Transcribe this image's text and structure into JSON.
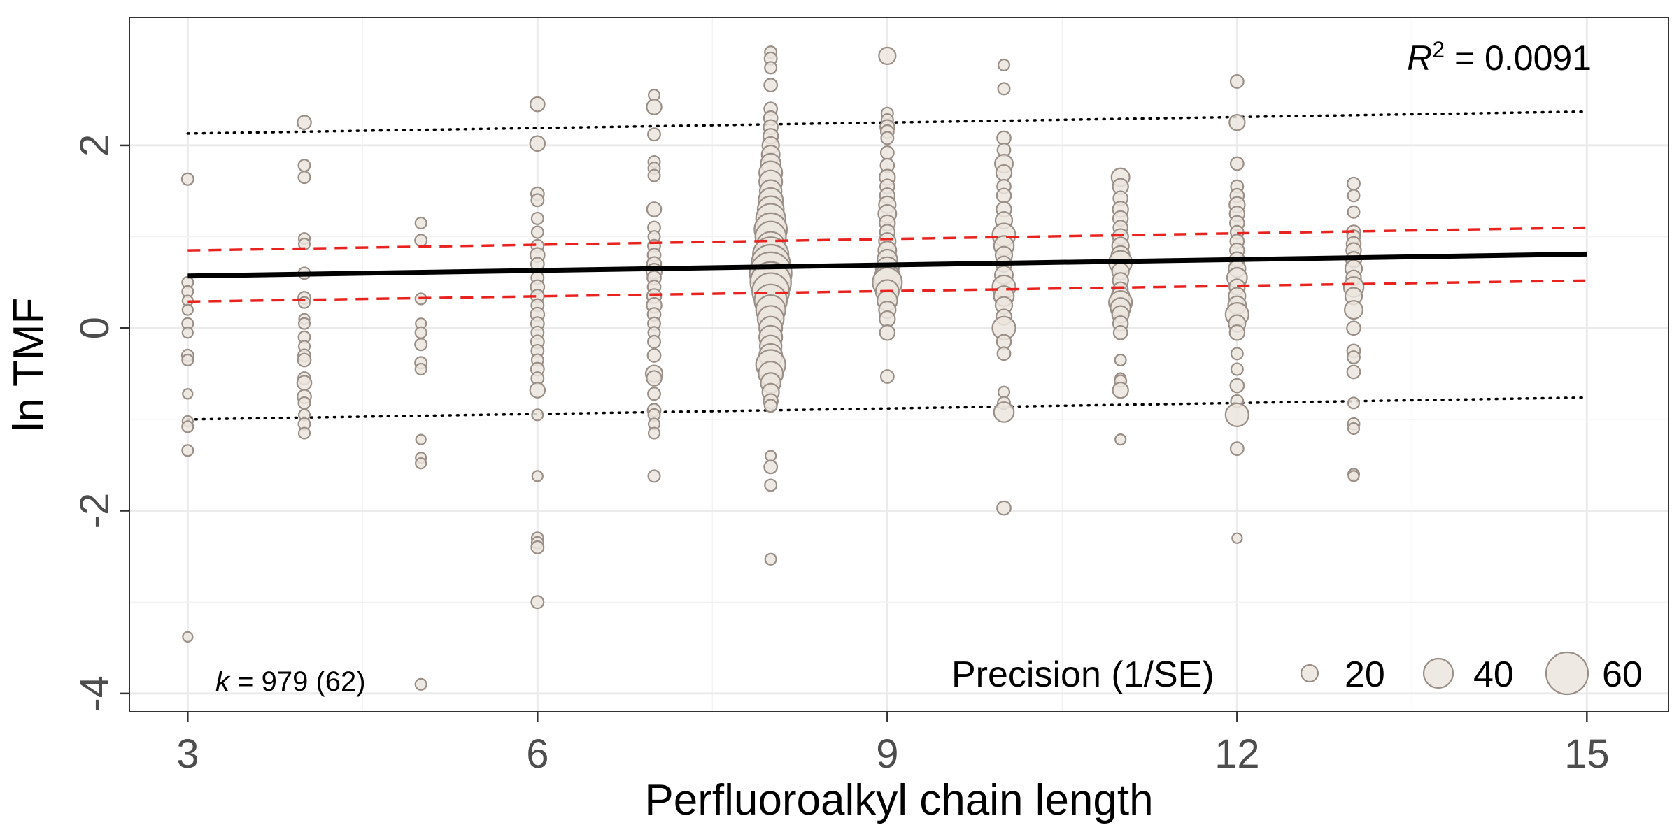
{
  "chart_data": {
    "type": "scatter",
    "xlabel": "Perfluoroalkyl chain length",
    "ylabel": "ln TMF",
    "xlim": [
      2.5,
      15.7
    ],
    "ylim": [
      -4.2,
      3.4
    ],
    "x_ticks": [
      3,
      6,
      9,
      12,
      15
    ],
    "x_tick_labels": [
      "3",
      "6",
      "9",
      "12",
      "15"
    ],
    "y_ticks": [
      -4,
      -2,
      0,
      2
    ],
    "y_tick_labels": [
      "-4",
      "-2",
      "0",
      "2"
    ],
    "grid": true,
    "r2_annotation": {
      "symbol": "R",
      "superscript": "2",
      "text": " = 0.0091"
    },
    "k_annotation": {
      "symbol": "k",
      "text": " = 979 (62)"
    },
    "legend": {
      "title": "Precision (1/SE)",
      "placement": "bottom-right",
      "sizes": [
        20,
        40,
        60
      ],
      "labels": [
        "20",
        "40",
        "60"
      ]
    },
    "point_fill": "#ebe5de",
    "point_stroke": "#9a8f87",
    "regression_line": {
      "x": [
        3,
        15
      ],
      "y": [
        0.57,
        0.81
      ],
      "color": "#000000",
      "style": "solid"
    },
    "confidence_interval": {
      "lower": {
        "x": [
          3,
          15
        ],
        "y": [
          0.29,
          0.52
        ]
      },
      "upper": {
        "x": [
          3,
          15
        ],
        "y": [
          0.85,
          1.1
        ]
      },
      "color": "#e8231f",
      "style": "dashed"
    },
    "prediction_interval": {
      "lower": {
        "x": [
          3,
          15
        ],
        "y": [
          -1.0,
          -0.76
        ]
      },
      "upper": {
        "x": [
          3,
          15
        ],
        "y": [
          2.13,
          2.37
        ]
      },
      "color": "#000000",
      "style": "dotted"
    },
    "series": [
      {
        "x": 3,
        "y": [
          1.63,
          0.5,
          0.4,
          0.3,
          0.2,
          0.05,
          -0.05,
          -0.3,
          -0.35,
          -0.72,
          -1.02,
          -1.08,
          -1.34,
          -3.38
        ],
        "precision": [
          12,
          11,
          11,
          10,
          10,
          11,
          10,
          12,
          11,
          9,
          10,
          11,
          11,
          9
        ]
      },
      {
        "x": 4,
        "y": [
          2.25,
          1.78,
          1.65,
          0.98,
          0.92,
          0.6,
          0.33,
          0.28,
          0.1,
          0.05,
          -0.1,
          -0.2,
          -0.3,
          -0.35,
          -0.55,
          -0.6,
          -0.75,
          -0.82,
          -0.95,
          -1.05,
          -1.15
        ],
        "precision": [
          15,
          12,
          12,
          11,
          11,
          12,
          13,
          11,
          10,
          11,
          12,
          11,
          13,
          14,
          13,
          16,
          15,
          12,
          11,
          12,
          11
        ]
      },
      {
        "x": 5,
        "y": [
          1.15,
          0.96,
          0.32,
          0.05,
          -0.05,
          -0.18,
          -0.38,
          -0.45,
          -1.22,
          -1.42,
          -1.48,
          -3.9
        ],
        "precision": [
          11,
          12,
          11,
          10,
          11,
          12,
          12,
          11,
          9,
          10,
          10,
          11
        ]
      },
      {
        "x": 6,
        "y": [
          2.45,
          2.02,
          1.47,
          1.4,
          1.2,
          1.05,
          0.9,
          0.8,
          0.7,
          0.55,
          0.45,
          0.35,
          0.25,
          0.15,
          0.05,
          -0.05,
          -0.15,
          -0.25,
          -0.35,
          -0.45,
          -0.55,
          -0.68,
          -0.95,
          -1.62,
          -2.3,
          -2.35,
          -2.4,
          -3.0
        ],
        "precision": [
          16,
          17,
          14,
          13,
          12,
          12,
          13,
          16,
          14,
          13,
          15,
          14,
          13,
          15,
          14,
          13,
          14,
          13,
          12,
          14,
          13,
          17,
          11,
          10,
          12,
          12,
          13,
          13
        ]
      },
      {
        "x": 7,
        "y": [
          2.55,
          2.42,
          2.12,
          1.82,
          1.75,
          1.67,
          1.3,
          1.1,
          1.0,
          0.9,
          0.8,
          0.7,
          0.62,
          0.55,
          0.45,
          0.35,
          0.25,
          0.15,
          0.05,
          -0.05,
          -0.15,
          -0.3,
          -0.5,
          -0.55,
          -0.72,
          -0.9,
          -0.95,
          -1.05,
          -1.15,
          -1.62
        ],
        "precision": [
          11,
          17,
          13,
          12,
          12,
          12,
          16,
          13,
          12,
          13,
          14,
          16,
          18,
          15,
          14,
          16,
          17,
          14,
          13,
          12,
          13,
          14,
          20,
          17,
          13,
          14,
          12,
          11,
          11,
          12
        ]
      },
      {
        "x": 8,
        "y": [
          3.02,
          2.95,
          2.85,
          2.66,
          2.4,
          2.3,
          2.2,
          2.1,
          2.0,
          1.9,
          1.8,
          1.7,
          1.6,
          1.5,
          1.4,
          1.3,
          1.2,
          1.08,
          1.0,
          0.9,
          0.8,
          0.7,
          0.6,
          0.5,
          0.4,
          0.3,
          0.2,
          0.1,
          0.0,
          -0.1,
          -0.2,
          -0.3,
          -0.4,
          -0.5,
          -0.6,
          -0.7,
          -0.8,
          -0.85,
          -1.4,
          -1.52,
          -1.72,
          -2.53
        ],
        "precision": [
          12,
          13,
          12,
          14,
          14,
          15,
          16,
          17,
          20,
          22,
          25,
          30,
          30,
          28,
          32,
          35,
          40,
          45,
          42,
          38,
          50,
          55,
          60,
          58,
          52,
          45,
          40,
          35,
          30,
          30,
          28,
          30,
          40,
          32,
          25,
          20,
          16,
          13,
          10,
          14,
          12,
          11
        ]
      },
      {
        "x": 9,
        "y": [
          2.98,
          2.35,
          2.28,
          2.2,
          2.15,
          2.08,
          1.92,
          1.78,
          1.65,
          1.55,
          1.45,
          1.35,
          1.25,
          1.15,
          1.05,
          0.95,
          0.85,
          0.75,
          0.65,
          0.55,
          0.5,
          0.4,
          0.3,
          0.2,
          0.1,
          -0.05,
          -0.53
        ],
        "precision": [
          20,
          12,
          12,
          16,
          14,
          13,
          14,
          15,
          18,
          16,
          17,
          20,
          22,
          18,
          17,
          20,
          22,
          25,
          30,
          35,
          40,
          30,
          25,
          20,
          18,
          17,
          14
        ]
      },
      {
        "x": 10,
        "y": [
          2.88,
          2.62,
          2.08,
          1.95,
          1.8,
          1.7,
          1.55,
          1.45,
          1.3,
          1.18,
          1.02,
          0.9,
          0.8,
          0.7,
          0.58,
          0.45,
          0.35,
          0.25,
          0.12,
          0.0,
          -0.15,
          -0.28,
          -0.7,
          -0.82,
          -0.92,
          -1.97
        ],
        "precision": [
          11,
          12,
          15,
          14,
          22,
          18,
          15,
          16,
          17,
          20,
          30,
          25,
          20,
          18,
          22,
          30,
          25,
          20,
          18,
          30,
          16,
          14,
          11,
          13,
          25,
          15
        ]
      },
      {
        "x": 11,
        "y": [
          1.65,
          1.55,
          1.42,
          1.3,
          1.2,
          1.1,
          1.0,
          0.9,
          0.8,
          0.72,
          0.62,
          0.52,
          0.42,
          0.35,
          0.28,
          0.22,
          0.15,
          0.05,
          -0.05,
          -0.35,
          -0.55,
          -0.58,
          -0.68,
          -1.22
        ],
        "precision": [
          22,
          18,
          16,
          18,
          17,
          16,
          18,
          20,
          22,
          30,
          20,
          18,
          17,
          22,
          30,
          25,
          20,
          17,
          15,
          11,
          10,
          12,
          18,
          10
        ]
      },
      {
        "x": 12,
        "y": [
          2.7,
          2.25,
          1.8,
          1.55,
          1.45,
          1.35,
          1.25,
          1.15,
          1.05,
          0.95,
          0.85,
          0.75,
          0.65,
          0.55,
          0.45,
          0.35,
          0.25,
          0.15,
          0.05,
          -0.05,
          -0.28,
          -0.45,
          -0.63,
          -0.8,
          -0.95,
          -1.32,
          -2.3
        ],
        "precision": [
          14,
          18,
          14,
          13,
          15,
          18,
          17,
          16,
          14,
          15,
          16,
          17,
          20,
          25,
          18,
          20,
          22,
          30,
          20,
          17,
          12,
          12,
          15,
          13,
          30,
          14,
          9
        ]
      },
      {
        "x": 13,
        "y": [
          1.58,
          1.45,
          1.27,
          1.05,
          1.0,
          0.92,
          0.85,
          0.75,
          0.65,
          0.55,
          0.45,
          0.35,
          0.2,
          0.0,
          -0.25,
          -0.32,
          -0.48,
          -0.82,
          -1.05,
          -1.1,
          -1.6,
          -1.62
        ],
        "precision": [
          13,
          12,
          12,
          15,
          14,
          16,
          17,
          18,
          20,
          17,
          25,
          20,
          22,
          15,
          14,
          13,
          14,
          11,
          12,
          11,
          11,
          10
        ]
      }
    ]
  }
}
